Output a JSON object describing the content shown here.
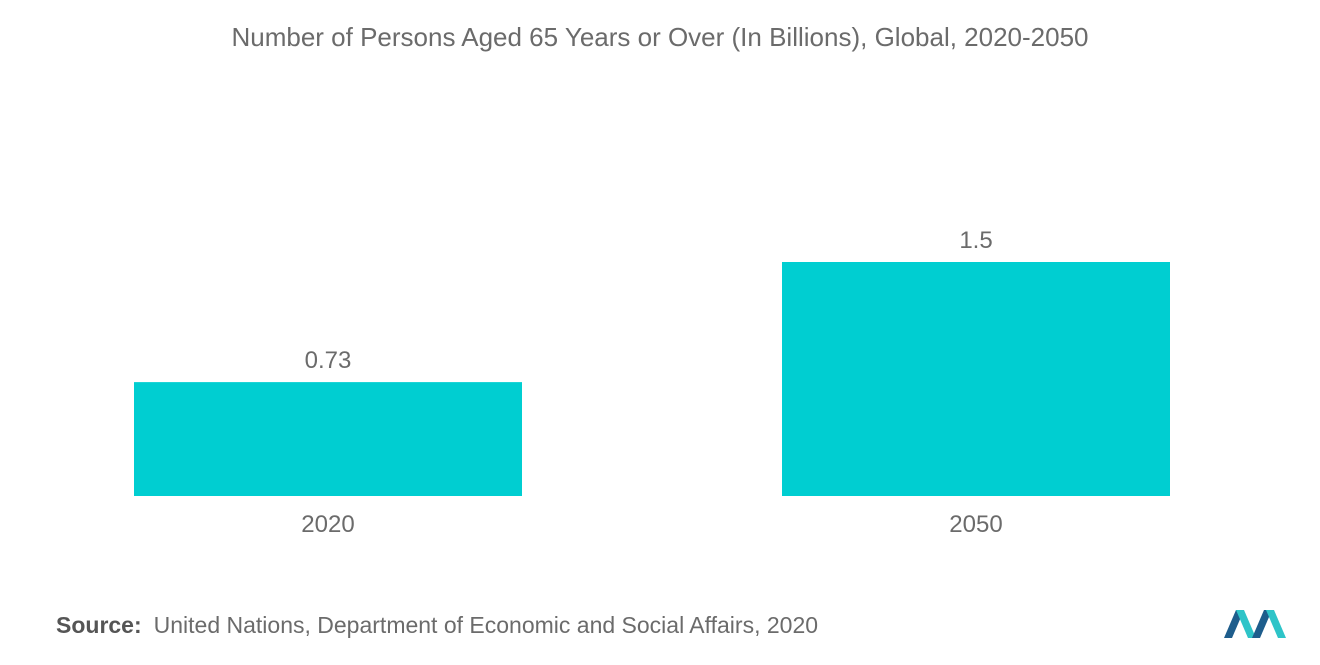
{
  "chart_data": {
    "type": "bar",
    "title": "Number of Persons Aged 65 Years or Over (In Billions), Global, 2020-2050",
    "categories": [
      "2020",
      "2050"
    ],
    "values": [
      0.73,
      1.5
    ],
    "data_labels": [
      "0.73",
      "1.5"
    ],
    "bar_color": "#00ced1",
    "ylim": [
      0,
      1.5
    ],
    "grid": false,
    "legend": "none"
  },
  "source": {
    "label": "Source:",
    "text": "United Nations, Department of Economic and Social Affairs, 2020"
  },
  "colors": {
    "text": "#6b6b6b",
    "logo_dark": "#1e5d8c",
    "logo_light": "#2ec4c8"
  },
  "logo_icon": "mordor-logo-icon"
}
